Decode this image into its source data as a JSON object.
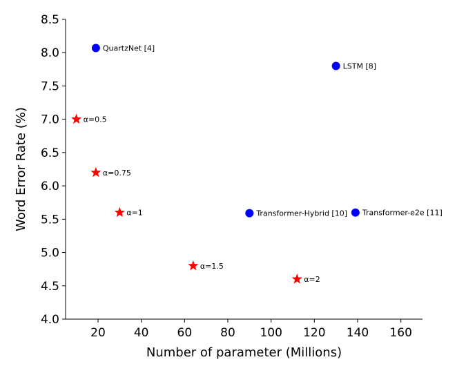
{
  "chart_data": {
    "type": "scatter",
    "xlabel": "Number of parameter (Millions)",
    "ylabel": "Word Error Rate (%)",
    "xlim": [
      5,
      170
    ],
    "ylim": [
      4.0,
      8.5
    ],
    "xticks": [
      20,
      40,
      60,
      80,
      100,
      120,
      140,
      160
    ],
    "yticks": [
      4.0,
      4.5,
      5.0,
      5.5,
      6.0,
      6.5,
      7.0,
      7.5,
      8.0,
      8.5
    ],
    "grid": false,
    "series": [
      {
        "marker": "circle",
        "color": "#0000ff",
        "points": [
          {
            "x": 19,
            "y": 8.07,
            "label": "QuartzNet [4]"
          },
          {
            "x": 130,
            "y": 7.8,
            "label": "LSTM [8]"
          },
          {
            "x": 90,
            "y": 5.59,
            "label": "Transformer-Hybrid [10]"
          },
          {
            "x": 139,
            "y": 5.6,
            "label": "Transformer-e2e [11]"
          }
        ]
      },
      {
        "marker": "star",
        "color": "#ff0000",
        "points": [
          {
            "x": 10,
            "y": 7.0,
            "label": "α=0.5"
          },
          {
            "x": 19,
            "y": 6.2,
            "label": "α=0.75"
          },
          {
            "x": 30,
            "y": 5.6,
            "label": "α=1"
          },
          {
            "x": 64,
            "y": 4.8,
            "label": "α=1.5"
          },
          {
            "x": 112,
            "y": 4.6,
            "label": "α=2"
          }
        ]
      }
    ]
  }
}
